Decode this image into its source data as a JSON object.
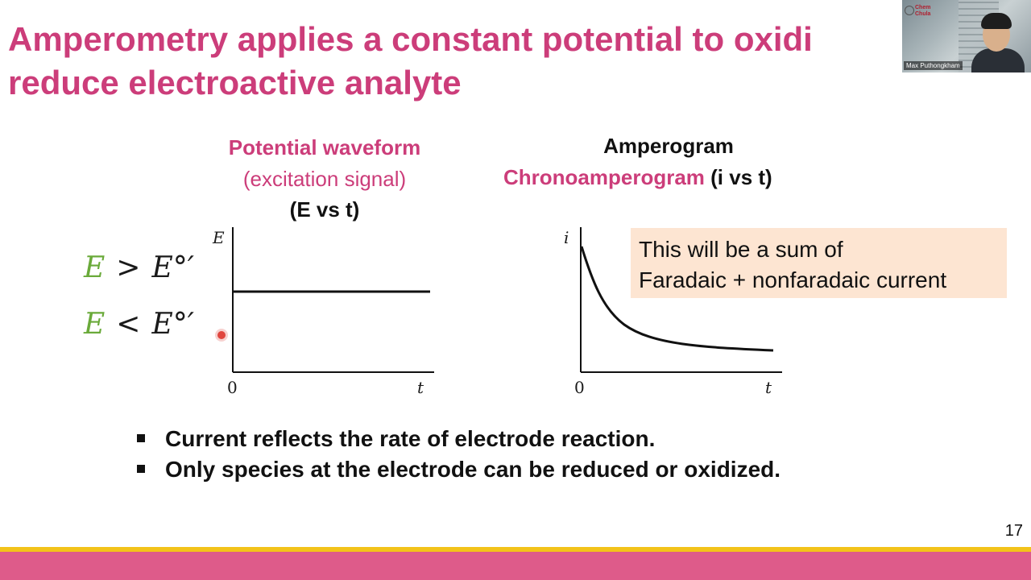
{
  "slide": {
    "title_line1": "Amperometry applies a constant potential to oxidi",
    "title_line2": "reduce electroactive analyte",
    "page_number": "17"
  },
  "video": {
    "name": "Max Puthongkham",
    "logo_line1": "Chem",
    "logo_line2": "Chula"
  },
  "waveform": {
    "heading": "Potential waveform",
    "subheading": "(excitation signal)",
    "axes_label": "(E vs t)",
    "y_axis": "E",
    "x_axis": "t",
    "origin": "0"
  },
  "amperogram": {
    "heading": "Amperogram",
    "subheading_pink": "Chronoamperogram",
    "subheading_dark": " (i vs t)",
    "y_axis": "i",
    "x_axis": "t",
    "origin": "0"
  },
  "conditions": [
    {
      "var": "E",
      "rel": ">",
      "ref": "E°′"
    },
    {
      "var": "E",
      "rel": "<",
      "ref": "E°′"
    }
  ],
  "callout": {
    "line1": "This will be a sum of",
    "line2": "Faradaic + nonfaradaic current"
  },
  "bullets": [
    "Current reflects the rate of electrode reaction.",
    "Only species at the electrode can be reduced or oxidized."
  ],
  "colors": {
    "title_pink": "#cc3d7a",
    "variable_green": "#6aaa3a",
    "callout_bg": "#fde5d2",
    "footer_yellow": "#f3c31a",
    "footer_pink": "#de5b8a"
  }
}
